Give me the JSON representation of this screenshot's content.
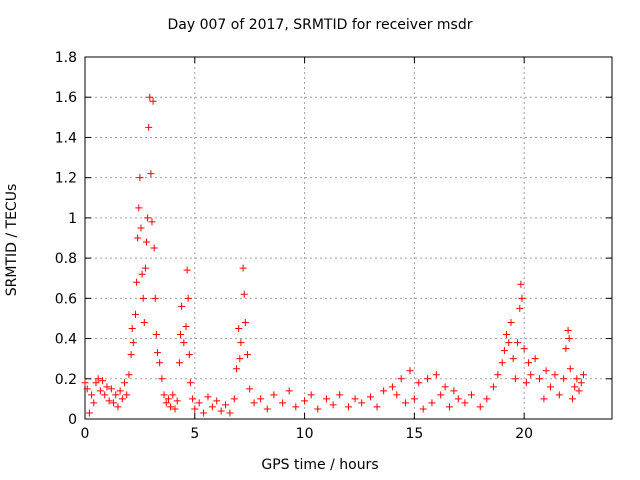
{
  "chart_data": {
    "type": "scatter",
    "title": "Day 007 of 2017, SRMTID for receiver msdr",
    "xlabel": "GPS time / hours",
    "ylabel": "SRMTID / TECUs",
    "xlim": [
      0,
      24
    ],
    "ylim": [
      0,
      1.8
    ],
    "x_ticks": [
      0,
      5,
      10,
      15,
      20
    ],
    "x_tick_labels": [
      "0",
      "5",
      "10",
      "15",
      "20"
    ],
    "y_ticks": [
      0,
      0.2,
      0.4,
      0.6,
      0.8,
      1.0,
      1.2,
      1.4,
      1.6,
      1.8
    ],
    "y_tick_labels": [
      "0",
      "0.2",
      "0.4",
      "0.6",
      "0.8",
      "1",
      "1.2",
      "1.4",
      "1.6",
      "1.8"
    ],
    "grid": true,
    "marker": "+",
    "color": "#ff0000",
    "series": [
      {
        "name": "SRMTID",
        "points": [
          [
            0.0,
            0.18
          ],
          [
            0.1,
            0.15
          ],
          [
            0.2,
            0.03
          ],
          [
            0.3,
            0.12
          ],
          [
            0.4,
            0.08
          ],
          [
            0.5,
            0.18
          ],
          [
            0.6,
            0.2
          ],
          [
            0.7,
            0.14
          ],
          [
            0.8,
            0.19
          ],
          [
            0.9,
            0.12
          ],
          [
            1.0,
            0.16
          ],
          [
            1.1,
            0.09
          ],
          [
            1.2,
            0.15
          ],
          [
            1.3,
            0.08
          ],
          [
            1.4,
            0.12
          ],
          [
            1.5,
            0.06
          ],
          [
            1.6,
            0.14
          ],
          [
            1.7,
            0.1
          ],
          [
            1.8,
            0.18
          ],
          [
            1.9,
            0.12
          ],
          [
            2.0,
            0.22
          ],
          [
            2.1,
            0.32
          ],
          [
            2.15,
            0.45
          ],
          [
            2.2,
            0.38
          ],
          [
            2.3,
            0.52
          ],
          [
            2.35,
            0.68
          ],
          [
            2.4,
            0.9
          ],
          [
            2.45,
            1.05
          ],
          [
            2.5,
            1.2
          ],
          [
            2.55,
            0.95
          ],
          [
            2.6,
            0.72
          ],
          [
            2.65,
            0.6
          ],
          [
            2.7,
            0.48
          ],
          [
            2.75,
            0.75
          ],
          [
            2.8,
            0.88
          ],
          [
            2.85,
            1.0
          ],
          [
            2.9,
            1.45
          ],
          [
            2.95,
            1.6
          ],
          [
            3.0,
            1.22
          ],
          [
            3.05,
            0.98
          ],
          [
            3.1,
            1.58
          ],
          [
            3.15,
            0.85
          ],
          [
            3.2,
            0.6
          ],
          [
            3.25,
            0.42
          ],
          [
            3.3,
            0.33
          ],
          [
            3.4,
            0.28
          ],
          [
            3.5,
            0.2
          ],
          [
            3.6,
            0.12
          ],
          [
            3.7,
            0.08
          ],
          [
            3.8,
            0.1
          ],
          [
            3.9,
            0.06
          ],
          [
            4.0,
            0.12
          ],
          [
            4.1,
            0.05
          ],
          [
            4.2,
            0.09
          ],
          [
            4.3,
            0.28
          ],
          [
            4.35,
            0.42
          ],
          [
            4.4,
            0.56
          ],
          [
            4.5,
            0.38
          ],
          [
            4.6,
            0.46
          ],
          [
            4.65,
            0.74
          ],
          [
            4.7,
            0.6
          ],
          [
            4.75,
            0.32
          ],
          [
            4.8,
            0.18
          ],
          [
            4.9,
            0.1
          ],
          [
            5.0,
            0.05
          ],
          [
            5.2,
            0.08
          ],
          [
            5.4,
            0.03
          ],
          [
            5.6,
            0.11
          ],
          [
            5.8,
            0.06
          ],
          [
            6.0,
            0.09
          ],
          [
            6.2,
            0.04
          ],
          [
            6.4,
            0.07
          ],
          [
            6.6,
            0.03
          ],
          [
            6.8,
            0.1
          ],
          [
            6.9,
            0.25
          ],
          [
            7.0,
            0.45
          ],
          [
            7.05,
            0.3
          ],
          [
            7.1,
            0.38
          ],
          [
            7.2,
            0.75
          ],
          [
            7.25,
            0.62
          ],
          [
            7.3,
            0.48
          ],
          [
            7.4,
            0.32
          ],
          [
            7.5,
            0.15
          ],
          [
            7.7,
            0.08
          ],
          [
            8.0,
            0.1
          ],
          [
            8.3,
            0.05
          ],
          [
            8.6,
            0.12
          ],
          [
            9.0,
            0.08
          ],
          [
            9.3,
            0.14
          ],
          [
            9.6,
            0.06
          ],
          [
            10.0,
            0.09
          ],
          [
            10.3,
            0.12
          ],
          [
            10.6,
            0.05
          ],
          [
            11.0,
            0.1
          ],
          [
            11.3,
            0.07
          ],
          [
            11.6,
            0.12
          ],
          [
            12.0,
            0.06
          ],
          [
            12.3,
            0.1
          ],
          [
            12.6,
            0.08
          ],
          [
            13.0,
            0.11
          ],
          [
            13.3,
            0.06
          ],
          [
            13.6,
            0.14
          ],
          [
            14.0,
            0.16
          ],
          [
            14.2,
            0.12
          ],
          [
            14.4,
            0.2
          ],
          [
            14.6,
            0.08
          ],
          [
            14.8,
            0.24
          ],
          [
            15.0,
            0.1
          ],
          [
            15.2,
            0.18
          ],
          [
            15.4,
            0.05
          ],
          [
            15.6,
            0.2
          ],
          [
            15.8,
            0.08
          ],
          [
            16.0,
            0.22
          ],
          [
            16.2,
            0.12
          ],
          [
            16.4,
            0.16
          ],
          [
            16.6,
            0.06
          ],
          [
            16.8,
            0.14
          ],
          [
            17.0,
            0.1
          ],
          [
            17.3,
            0.08
          ],
          [
            17.6,
            0.12
          ],
          [
            18.0,
            0.06
          ],
          [
            18.3,
            0.1
          ],
          [
            18.6,
            0.16
          ],
          [
            18.8,
            0.22
          ],
          [
            19.0,
            0.28
          ],
          [
            19.1,
            0.34
          ],
          [
            19.2,
            0.42
          ],
          [
            19.3,
            0.38
          ],
          [
            19.4,
            0.48
          ],
          [
            19.5,
            0.3
          ],
          [
            19.6,
            0.2
          ],
          [
            19.7,
            0.38
          ],
          [
            19.8,
            0.55
          ],
          [
            19.85,
            0.67
          ],
          [
            19.9,
            0.6
          ],
          [
            20.0,
            0.35
          ],
          [
            20.1,
            0.18
          ],
          [
            20.2,
            0.28
          ],
          [
            20.3,
            0.22
          ],
          [
            20.5,
            0.3
          ],
          [
            20.7,
            0.2
          ],
          [
            20.9,
            0.1
          ],
          [
            21.0,
            0.24
          ],
          [
            21.2,
            0.16
          ],
          [
            21.4,
            0.22
          ],
          [
            21.6,
            0.12
          ],
          [
            21.8,
            0.2
          ],
          [
            21.9,
            0.35
          ],
          [
            22.0,
            0.44
          ],
          [
            22.05,
            0.4
          ],
          [
            22.1,
            0.25
          ],
          [
            22.2,
            0.1
          ],
          [
            22.3,
            0.16
          ],
          [
            22.4,
            0.2
          ],
          [
            22.5,
            0.14
          ],
          [
            22.6,
            0.18
          ],
          [
            22.7,
            0.22
          ]
        ]
      }
    ]
  }
}
